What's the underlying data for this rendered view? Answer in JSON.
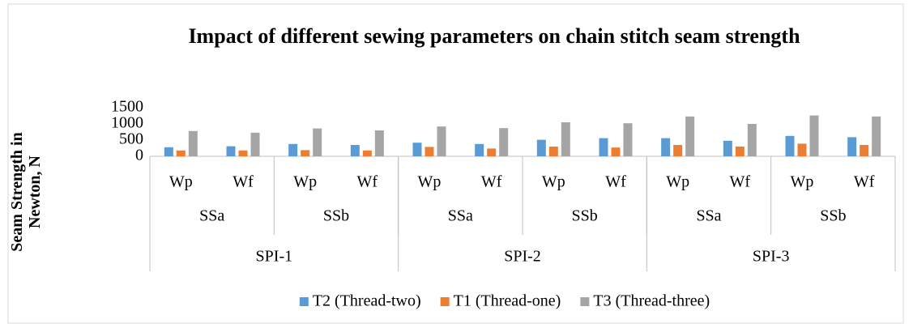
{
  "chart_data": {
    "type": "bar",
    "title": "Impact of different sewing parameters on chain stitch seam strength",
    "y_label": "Seam Strength in Newton, N",
    "categories": [
      "Wp",
      "Wf",
      "Wp",
      "Wf",
      "Wp",
      "Wf",
      "Wp",
      "Wf",
      "Wp",
      "Wf",
      "Wp",
      "Wf"
    ],
    "category_groups": [
      [
        "SSa",
        "SSb",
        "SSa",
        "SSb",
        "SSa",
        "SSb"
      ],
      [
        "SPI-1",
        "SPI-2",
        "SPI-3"
      ]
    ],
    "series": [
      {
        "name": "T2 (Thread-two)",
        "color": "#5b9bd5",
        "values": [
          280,
          310,
          380,
          350,
          420,
          380,
          510,
          560,
          560,
          480,
          630,
          590
        ]
      },
      {
        "name": "T1 (Thread-one)",
        "color": "#ed7d31",
        "values": [
          180,
          180,
          190,
          180,
          290,
          240,
          300,
          270,
          350,
          300,
          390,
          350
        ]
      },
      {
        "name": "T3 (Thread-three)",
        "color": "#a5a5a5",
        "values": [
          780,
          730,
          860,
          800,
          920,
          870,
          1050,
          1020,
          1230,
          1000,
          1260,
          1230
        ]
      }
    ],
    "ylim": [
      0,
      1500
    ],
    "yticks": [
      0,
      500,
      1000,
      1500
    ],
    "grid": false
  }
}
